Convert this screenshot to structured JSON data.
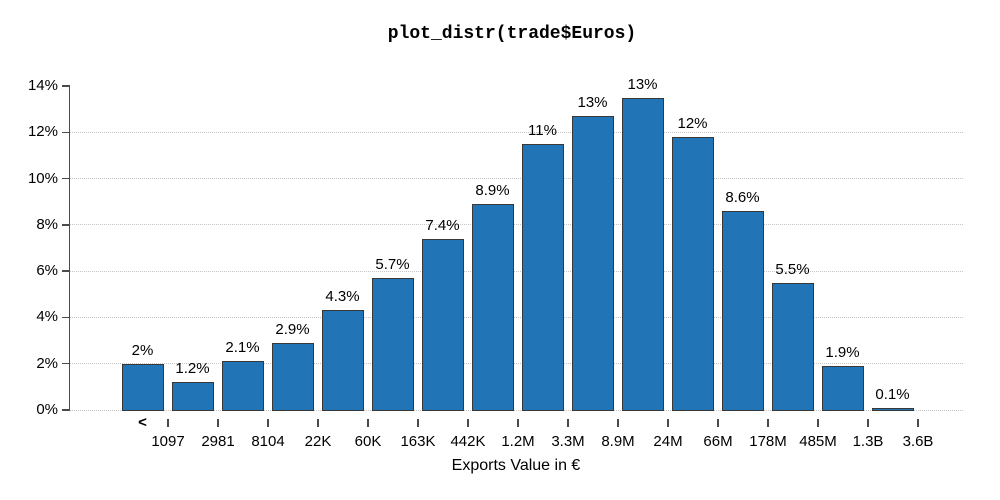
{
  "chart_data": {
    "type": "bar",
    "title": "plot_distr(trade$Euros)",
    "xlabel": "Exports Value in €",
    "ylabel": "",
    "ylim": [
      0,
      14
    ],
    "grid": "horizontal dotted, no gridline at top tick",
    "legend": "none",
    "y_ticks": {
      "values": [
        0,
        2,
        4,
        6,
        8,
        10,
        12,
        14
      ],
      "labels": [
        "0%",
        "2%",
        "4%",
        "6%",
        "8%",
        "10%",
        "12%",
        "14%"
      ]
    },
    "x_boundary_labels": [
      "1097",
      "2981",
      "8104",
      "22K",
      "60K",
      "163K",
      "442K",
      "1.2M",
      "3.3M",
      "8.9M",
      "24M",
      "66M",
      "178M",
      "485M",
      "1.3B",
      "3.6B"
    ],
    "first_bin_marker": "<",
    "bars": [
      {
        "value_label": "2%",
        "value": 2.0
      },
      {
        "value_label": "1.2%",
        "value": 1.2
      },
      {
        "value_label": "2.1%",
        "value": 2.1
      },
      {
        "value_label": "2.9%",
        "value": 2.9
      },
      {
        "value_label": "4.3%",
        "value": 4.3
      },
      {
        "value_label": "5.7%",
        "value": 5.7
      },
      {
        "value_label": "7.4%",
        "value": 7.4
      },
      {
        "value_label": "8.9%",
        "value": 8.9
      },
      {
        "value_label": "11%",
        "value": 11.5
      },
      {
        "value_label": "13%",
        "value": 12.7
      },
      {
        "value_label": "13%",
        "value": 13.5
      },
      {
        "value_label": "12%",
        "value": 11.8
      },
      {
        "value_label": "8.6%",
        "value": 8.6
      },
      {
        "value_label": "5.5%",
        "value": 5.5
      },
      {
        "value_label": "1.9%",
        "value": 1.9
      },
      {
        "value_label": "0.1%",
        "value": 0.1
      }
    ],
    "colors": {
      "bar_fill": "#2174b5",
      "bar_border": "#383838",
      "axis": "#4a4a4a",
      "gridline": "#c6c6c6",
      "text": "#000000",
      "background": "#ffffff"
    }
  }
}
